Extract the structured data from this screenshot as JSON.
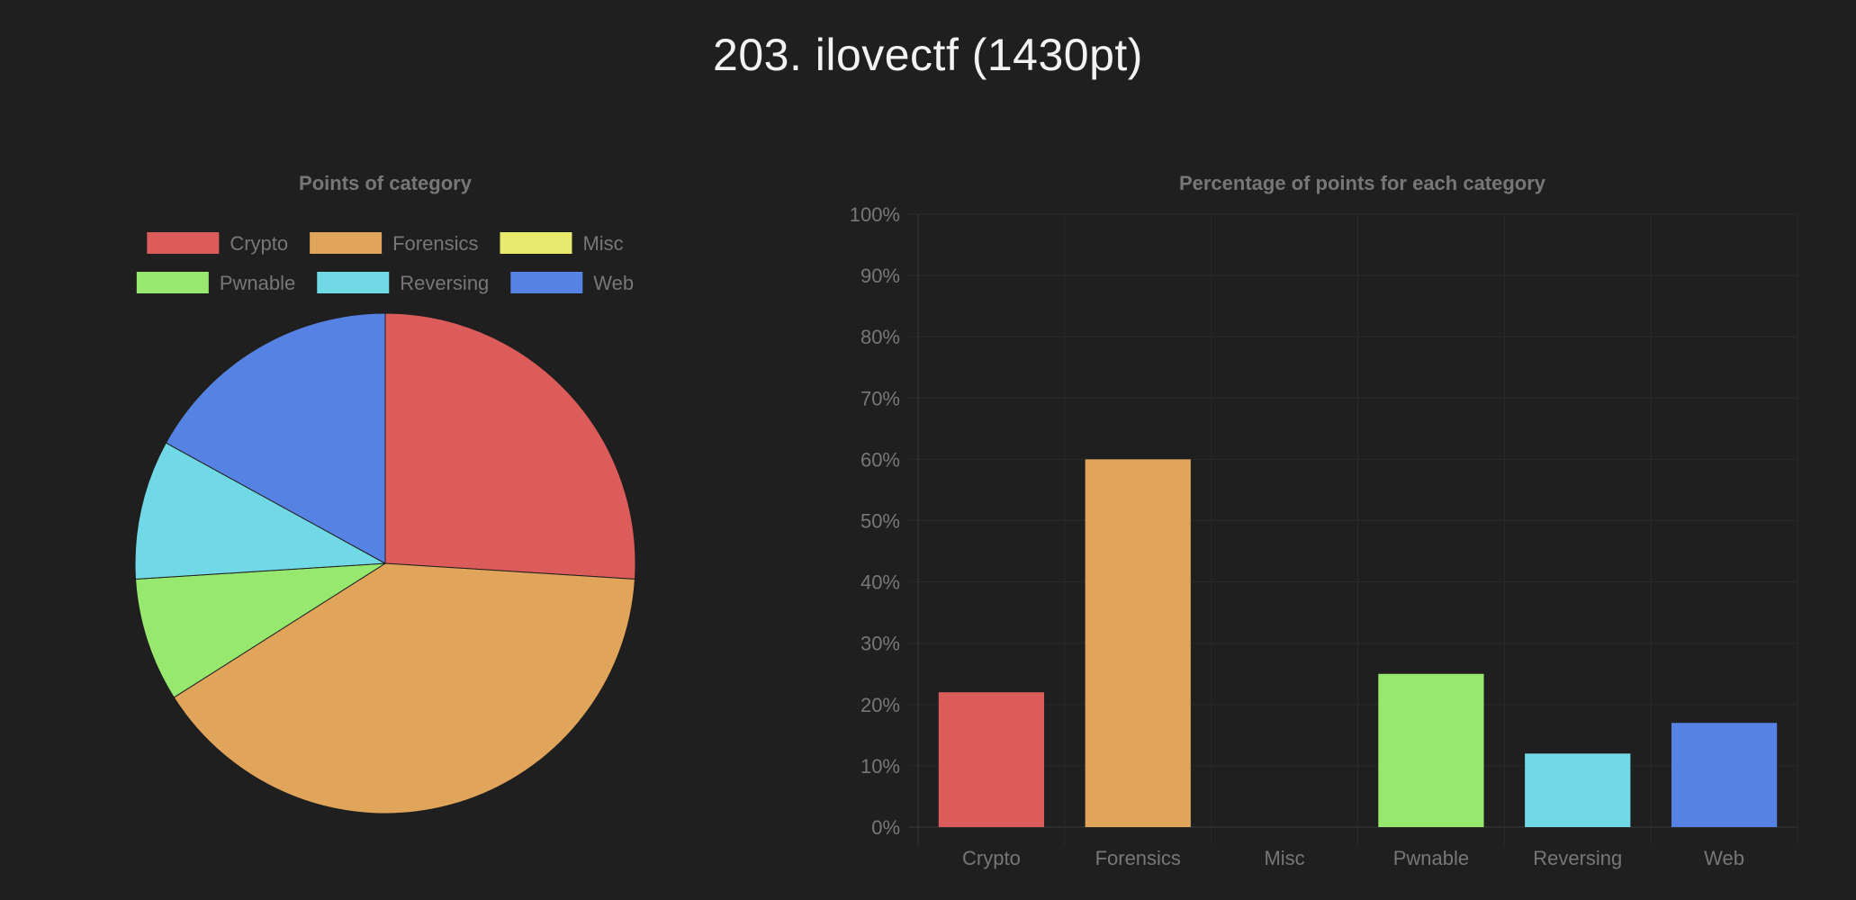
{
  "page": {
    "title": "203. ilovectf (1430pt)"
  },
  "chart_data": [
    {
      "type": "pie",
      "title": "Points of category",
      "legend_position": "top",
      "categories": [
        "Crypto",
        "Forensics",
        "Misc",
        "Pwnable",
        "Reversing",
        "Web"
      ],
      "values": [
        26,
        40,
        0,
        8,
        9,
        17
      ],
      "colors": [
        "#db5c5a",
        "#e0a55b",
        "#e7ea6c",
        "#96e86f",
        "#71d9e6",
        "#5683e3"
      ],
      "border_color": "#1f1f1f"
    },
    {
      "type": "bar",
      "title": "Percentage of points for each category",
      "categories": [
        "Crypto",
        "Forensics",
        "Misc",
        "Pwnable",
        "Reversing",
        "Web"
      ],
      "values": [
        22,
        60,
        0,
        25,
        12,
        17
      ],
      "colors": [
        "#db5c5a",
        "#e0a55b",
        "#e7ea6c",
        "#96e86f",
        "#71d9e6",
        "#5683e3"
      ],
      "ylim": [
        0,
        100
      ],
      "yticks": [
        "0%",
        "10%",
        "20%",
        "30%",
        "40%",
        "50%",
        "60%",
        "70%",
        "80%",
        "90%",
        "100%"
      ],
      "grid": true,
      "xlabel": "",
      "ylabel": ""
    }
  ]
}
